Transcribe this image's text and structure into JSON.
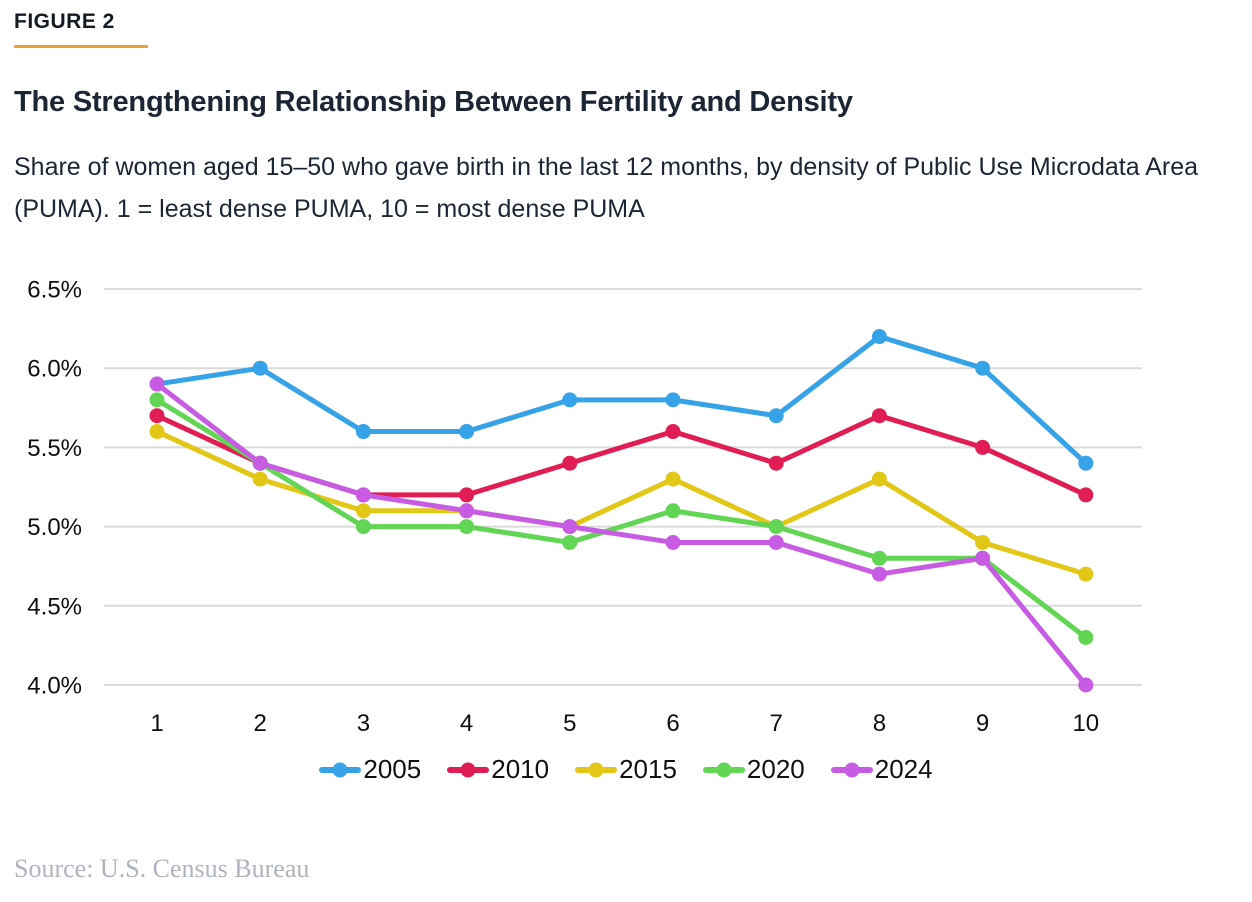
{
  "header": {
    "figure_label": "FIGURE 2",
    "title": "The Strengthening Relationship Between Fertility and Density",
    "subtitle": "Share of women aged 15–50 who gave birth in the last 12 months, by density of Public Use Microdata Area (PUMA). 1 = least dense PUMA, 10 = most dense PUMA"
  },
  "colors": {
    "accent_rule": "#e9a23b",
    "grid": "#dbdbdb",
    "axis_text": "#0f0f0f",
    "title_text": "#1b2533",
    "source_text": "#aeb4be"
  },
  "chart_data": {
    "type": "line",
    "x": [
      1,
      2,
      3,
      4,
      5,
      6,
      7,
      8,
      9,
      10
    ],
    "x_tick_labels": [
      "1",
      "2",
      "3",
      "4",
      "5",
      "6",
      "7",
      "8",
      "9",
      "10"
    ],
    "y_ticks": [
      {
        "value": 6.5,
        "label": "6.5%"
      },
      {
        "value": 6.0,
        "label": "6.0%"
      },
      {
        "value": 5.5,
        "label": "5.5%"
      },
      {
        "value": 5.0,
        "label": "5.0%"
      },
      {
        "value": 4.5,
        "label": "4.5%"
      },
      {
        "value": 4.0,
        "label": "4.0%"
      }
    ],
    "ylim": [
      4.0,
      6.5
    ],
    "grid": "horizontal",
    "legend_position": "bottom",
    "marker": "circle",
    "series": [
      {
        "name": "2005",
        "color": "#36a2e8",
        "values": [
          5.9,
          6.0,
          5.6,
          5.6,
          5.8,
          5.8,
          5.7,
          6.2,
          6.0,
          5.4
        ]
      },
      {
        "name": "2010",
        "color": "#e11d55",
        "values": [
          5.7,
          5.4,
          5.2,
          5.2,
          5.4,
          5.6,
          5.4,
          5.7,
          5.5,
          5.2
        ]
      },
      {
        "name": "2015",
        "color": "#e2c716",
        "values": [
          5.6,
          5.3,
          5.1,
          5.1,
          5.0,
          5.3,
          5.0,
          5.3,
          4.9,
          4.7
        ]
      },
      {
        "name": "2020",
        "color": "#63d554",
        "values": [
          5.8,
          5.4,
          5.0,
          5.0,
          4.9,
          5.1,
          5.0,
          4.8,
          4.8,
          4.3
        ]
      },
      {
        "name": "2024",
        "color": "#c75be3",
        "values": [
          5.9,
          5.4,
          5.2,
          5.1,
          5.0,
          4.9,
          4.9,
          4.7,
          4.8,
          4.0
        ]
      }
    ]
  },
  "footer": {
    "source": "Source: U.S. Census Bureau"
  }
}
